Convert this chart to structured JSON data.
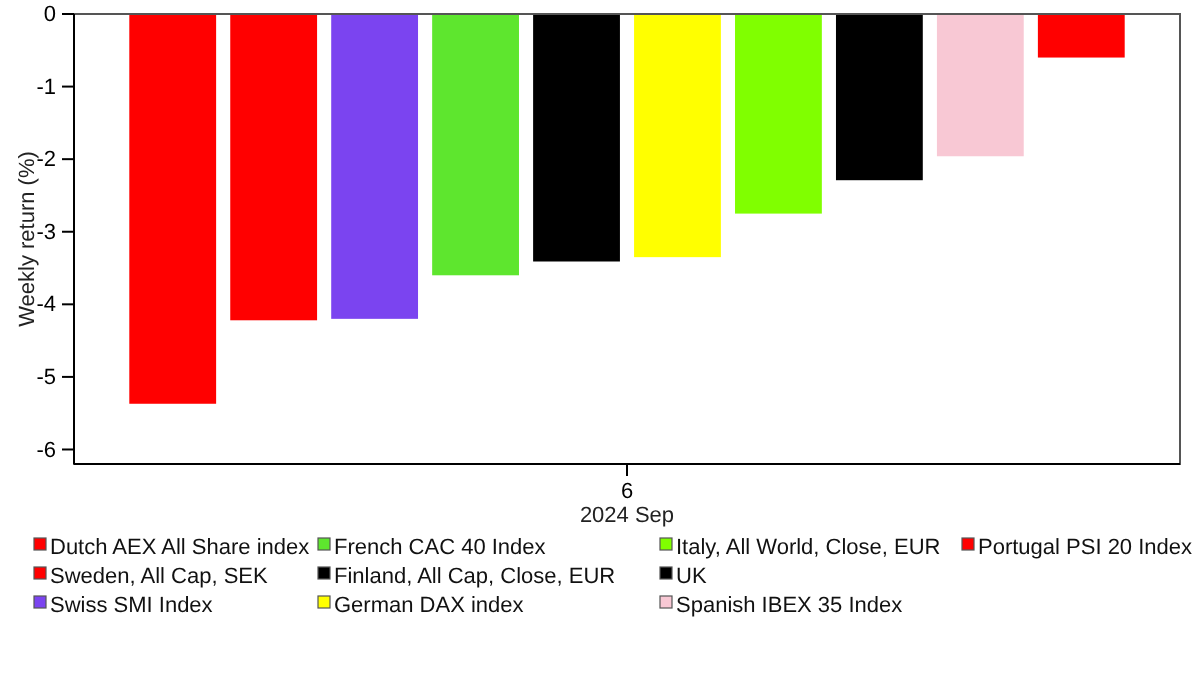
{
  "chart_data": {
    "type": "bar",
    "categories": [
      "6"
    ],
    "xlabel": "2024 Sep",
    "ylabel": "Weekly return (%)",
    "ylim": [
      -6.2,
      0
    ],
    "yticks": [
      -6,
      -5,
      -4,
      -3,
      -2,
      -1,
      0
    ],
    "grid": false,
    "legend": "bottom",
    "series": [
      {
        "name": "Dutch AEX All Share index",
        "color": "#ff0000",
        "values": [
          -5.37
        ]
      },
      {
        "name": "Sweden, All Cap, SEK",
        "color": "#ff0000",
        "values": [
          -4.22
        ]
      },
      {
        "name": "Swiss SMI Index",
        "color": "#7b44f0",
        "values": [
          -4.2
        ]
      },
      {
        "name": "French CAC 40 Index",
        "color": "#5ee62e",
        "values": [
          -3.6
        ]
      },
      {
        "name": "Finland, All Cap, Close, EUR",
        "color": "#000000",
        "values": [
          -3.41
        ]
      },
      {
        "name": "German DAX index",
        "color": "#ffff00",
        "values": [
          -3.35
        ]
      },
      {
        "name": "Italy, All World, Close, EUR",
        "color": "#80ff00",
        "values": [
          -2.75
        ]
      },
      {
        "name": "UK",
        "color": "#000000",
        "values": [
          -2.29
        ]
      },
      {
        "name": "Spanish IBEX 35 Index",
        "color": "#f8c8d4",
        "values": [
          -1.96
        ]
      },
      {
        "name": "Portugal PSI 20 Index",
        "color": "#ff0000",
        "values": [
          -0.6
        ]
      }
    ]
  }
}
